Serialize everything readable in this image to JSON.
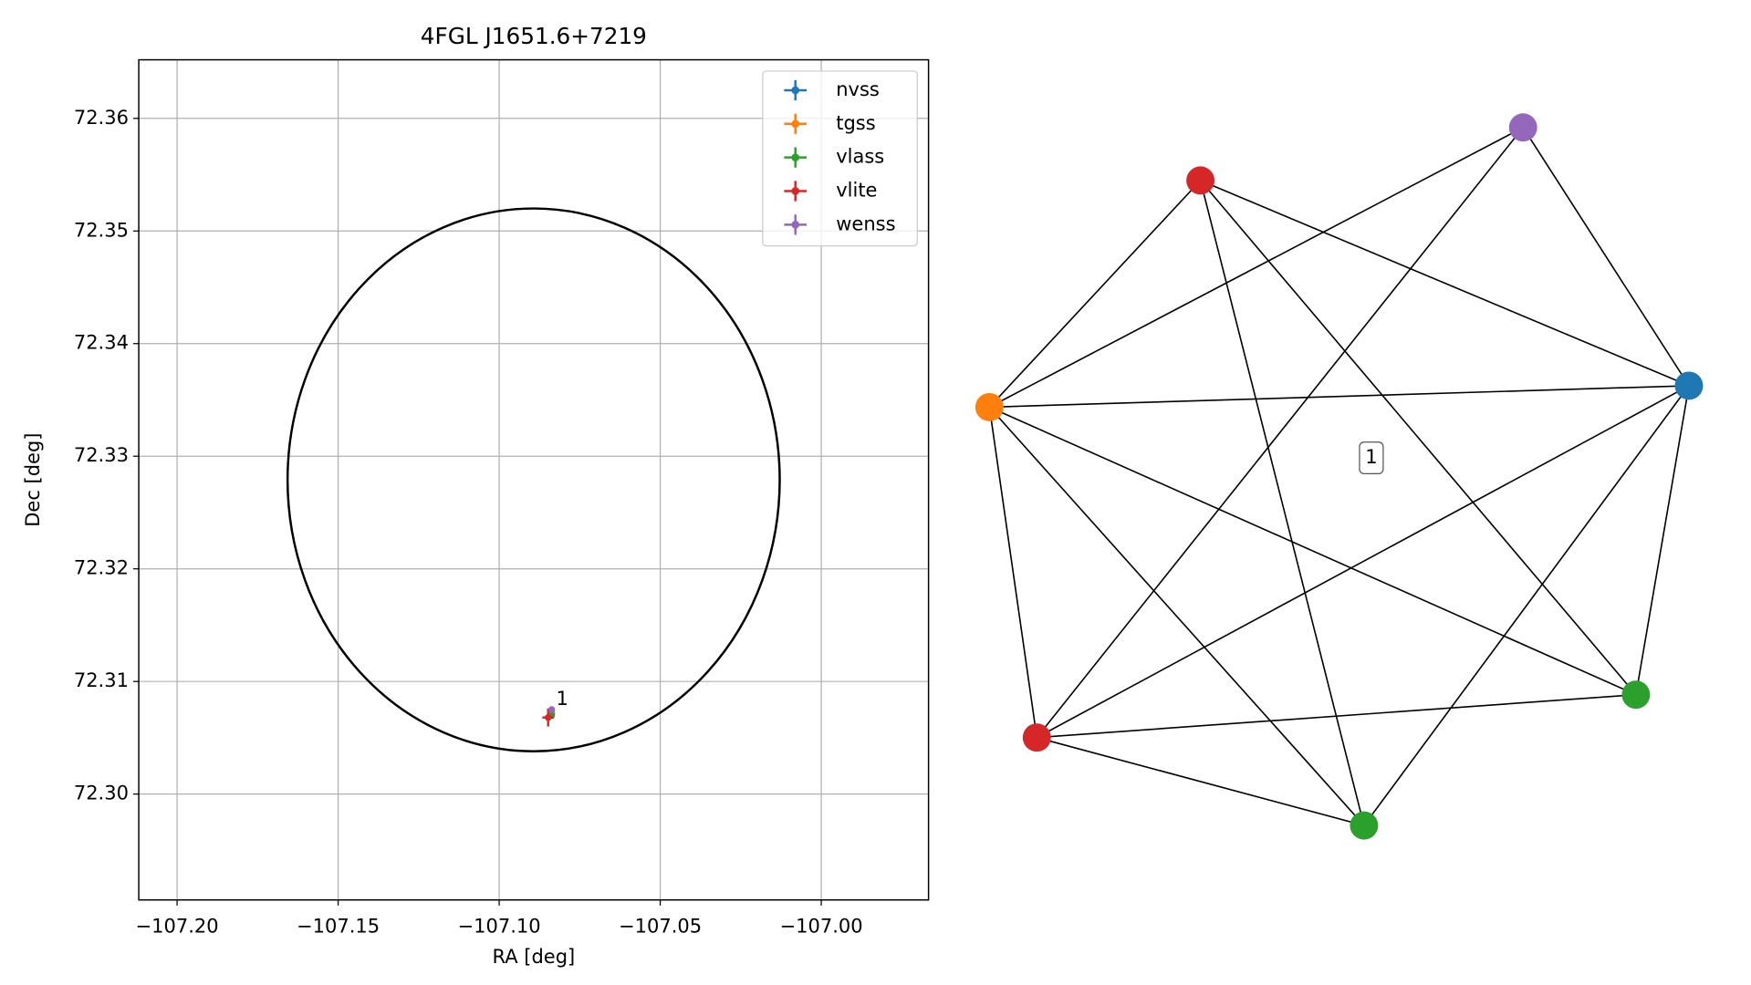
{
  "chart_data": [
    {
      "type": "scatter",
      "title": "4FGL J1651.6+7219",
      "xlabel": "RA [deg]",
      "ylabel": "Dec [deg]",
      "xlim": [
        -107.2119,
        -106.9667
      ],
      "ylim": [
        72.2906,
        72.3652
      ],
      "xticks": [
        {
          "value": -107.2,
          "label": "−107.20"
        },
        {
          "value": -107.15,
          "label": "−107.15"
        },
        {
          "value": -107.1,
          "label": "−107.10"
        },
        {
          "value": -107.05,
          "label": "−107.05"
        },
        {
          "value": -107.0,
          "label": "−107.00"
        }
      ],
      "yticks": [
        {
          "value": 72.3,
          "label": "72.30"
        },
        72.31,
        72.32,
        72.33,
        72.34,
        72.35,
        72.36
      ],
      "grid": true,
      "legend": "upper right",
      "region": {
        "x": -107.0893,
        "y": 72.3279,
        "rx": 0.0764,
        "ry": 0.0241,
        "color": "#000000"
      },
      "series": [
        {
          "name": "nvss",
          "color": "#1f77b4",
          "x": [
            -107.0837
          ],
          "y": [
            72.3072
          ],
          "xerr": [
            0.0003
          ],
          "yerr": [
            0.0003
          ]
        },
        {
          "name": "tgss",
          "color": "#ff7f0e",
          "x": [
            -107.0837
          ],
          "y": [
            72.3072
          ],
          "xerr": [
            0.0003
          ],
          "yerr": [
            0.0003
          ]
        },
        {
          "name": "vlass",
          "color": "#2ca02c",
          "x": [
            -107.0837
          ],
          "y": [
            72.307
          ],
          "xerr": [
            0.0004
          ],
          "yerr": [
            0.0003
          ]
        },
        {
          "name": "vlite",
          "color": "#d62728",
          "x": [
            -107.0848
          ],
          "y": [
            72.3068
          ],
          "xerr": [
            0.0018
          ],
          "yerr": [
            0.0008
          ]
        },
        {
          "name": "wenss",
          "color": "#9467bd",
          "x": [
            -107.0837
          ],
          "y": [
            72.3075
          ],
          "xerr": [
            0.0003
          ],
          "yerr": [
            0.0003
          ]
        }
      ],
      "annotations": [
        {
          "text": "1",
          "x": -107.0823,
          "y": 72.3084
        }
      ]
    },
    {
      "type": "network",
      "label": "1",
      "nodes": [
        {
          "color": "#d62728"
        },
        {
          "color": "#9467bd"
        },
        {
          "color": "#1f77b4"
        },
        {
          "color": "#ff7f0e"
        },
        {
          "color": "#d62728"
        },
        {
          "color": "#2ca02c"
        },
        {
          "color": "#2ca02c"
        }
      ],
      "edges": [
        [
          0,
          2
        ],
        [
          0,
          3
        ],
        [
          0,
          5
        ],
        [
          0,
          6
        ],
        [
          1,
          3
        ],
        [
          1,
          2
        ],
        [
          1,
          4
        ],
        [
          3,
          2
        ],
        [
          3,
          4
        ],
        [
          3,
          5
        ],
        [
          3,
          6
        ],
        [
          2,
          4
        ],
        [
          2,
          5
        ],
        [
          2,
          6
        ],
        [
          4,
          6
        ],
        [
          4,
          5
        ]
      ]
    }
  ]
}
